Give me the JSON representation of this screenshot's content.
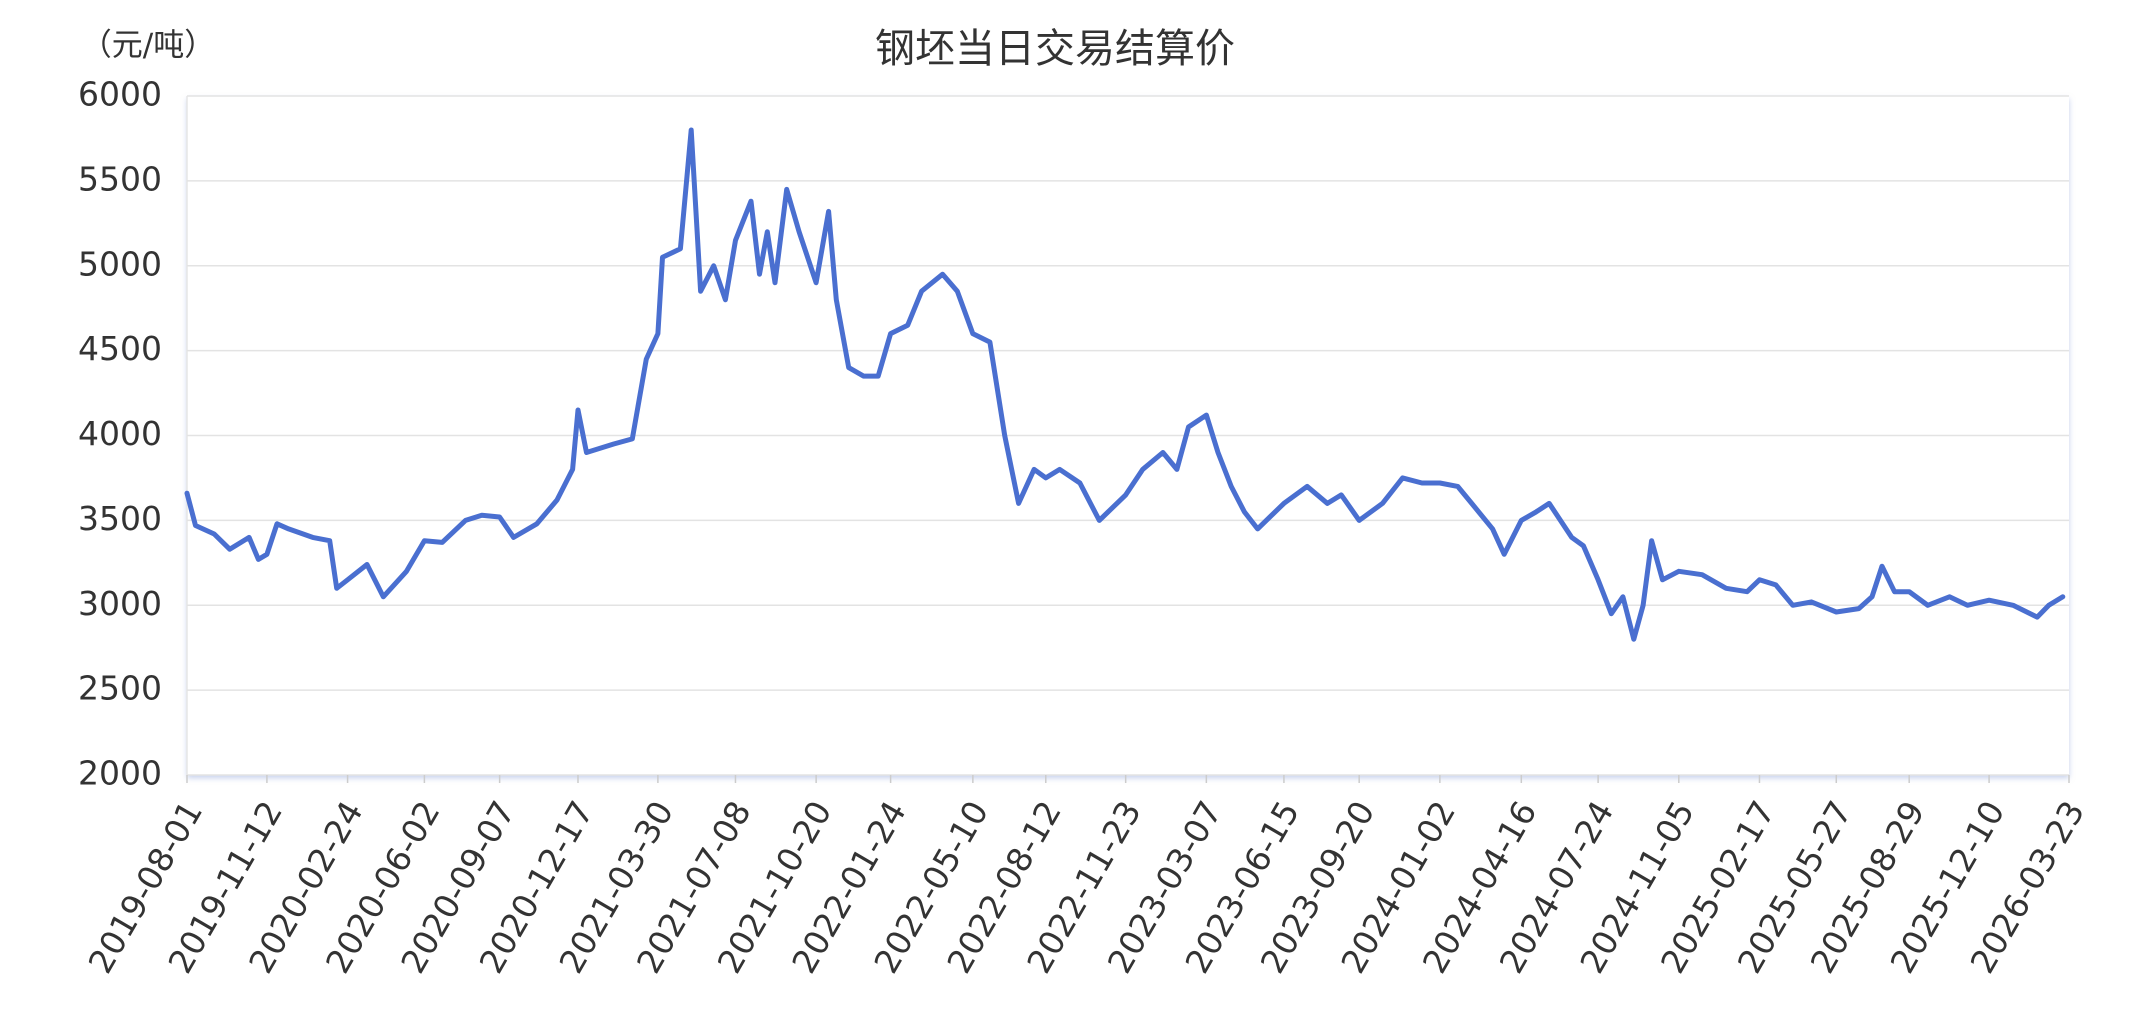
{
  "chart_data": {
    "type": "line",
    "title": "钢坯当日交易结算价",
    "y_unit": "（元/吨）",
    "color": "#4a6fd0",
    "x": [
      "2019-08-01",
      "2019-08-12",
      "2019-09-05",
      "2019-09-25",
      "2019-10-20",
      "2019-11-01",
      "2019-11-12",
      "2019-11-25",
      "2019-12-10",
      "2020-01-10",
      "2020-02-01",
      "2020-02-10",
      "2020-02-24",
      "2020-03-20",
      "2020-04-10",
      "2020-05-10",
      "2020-06-02",
      "2020-06-25",
      "2020-07-25",
      "2020-08-15",
      "2020-09-07",
      "2020-09-25",
      "2020-10-25",
      "2020-11-20",
      "2020-12-10",
      "2020-12-17",
      "2020-12-28",
      "2021-02-01",
      "2021-02-25",
      "2021-03-15",
      "2021-03-30",
      "2021-04-05",
      "2021-04-28",
      "2021-05-12",
      "2021-05-24",
      "2021-06-10",
      "2021-06-25",
      "2021-07-08",
      "2021-07-28",
      "2021-08-08",
      "2021-08-18",
      "2021-08-28",
      "2021-09-12",
      "2021-09-28",
      "2021-10-20",
      "2021-11-05",
      "2021-11-15",
      "2021-12-01",
      "2021-12-20",
      "2022-01-08",
      "2022-01-24",
      "2022-02-15",
      "2022-03-05",
      "2022-04-01",
      "2022-04-20",
      "2022-05-10",
      "2022-06-01",
      "2022-06-20",
      "2022-07-08",
      "2022-07-28",
      "2022-08-12",
      "2022-08-30",
      "2022-09-25",
      "2022-10-20",
      "2022-11-23",
      "2022-12-15",
      "2023-01-10",
      "2023-01-28",
      "2023-02-12",
      "2023-03-07",
      "2023-03-22",
      "2023-04-08",
      "2023-04-25",
      "2023-05-12",
      "2023-06-15",
      "2023-07-15",
      "2023-08-10",
      "2023-08-28",
      "2023-09-20",
      "2023-10-20",
      "2023-11-15",
      "2023-12-10",
      "2024-01-02",
      "2024-01-25",
      "2024-02-12",
      "2024-03-10",
      "2024-03-25",
      "2024-04-16",
      "2024-05-05",
      "2024-05-22",
      "2024-06-20",
      "2024-07-05",
      "2024-07-24",
      "2024-08-10",
      "2024-08-25",
      "2024-09-08",
      "2024-09-20",
      "2024-10-01",
      "2024-10-15",
      "2024-11-05",
      "2024-12-05",
      "2025-01-05",
      "2025-02-01",
      "2025-02-17",
      "2025-03-10",
      "2025-04-01",
      "2025-04-25",
      "2025-05-27",
      "2025-06-25",
      "2025-07-12",
      "2025-07-25",
      "2025-08-10",
      "2025-08-29",
      "2025-09-22",
      "2025-10-20",
      "2025-11-12",
      "2025-12-10",
      "2026-01-10",
      "2026-02-10",
      "2026-02-25",
      "2026-03-15"
    ],
    "values": [
      3660,
      3470,
      3420,
      3330,
      3400,
      3270,
      3300,
      3480,
      3450,
      3400,
      3380,
      3100,
      3150,
      3240,
      3050,
      3200,
      3380,
      3370,
      3500,
      3530,
      3520,
      3400,
      3480,
      3620,
      3800,
      4150,
      3900,
      3950,
      3980,
      4450,
      4600,
      5050,
      5100,
      5800,
      4850,
      5000,
      4800,
      5150,
      5380,
      4950,
      5200,
      4900,
      5450,
      5200,
      4900,
      5320,
      4800,
      4400,
      4350,
      4350,
      4600,
      4650,
      4850,
      4950,
      4850,
      4600,
      4550,
      4000,
      3600,
      3800,
      3750,
      3800,
      3720,
      3500,
      3650,
      3800,
      3900,
      3800,
      4050,
      4120,
      3900,
      3700,
      3550,
      3450,
      3600,
      3700,
      3600,
      3650,
      3500,
      3600,
      3750,
      3720,
      3720,
      3700,
      3600,
      3450,
      3300,
      3500,
      3550,
      3600,
      3400,
      3350,
      3150,
      2950,
      3050,
      2800,
      3000,
      3380,
      3150,
      3200,
      3180,
      3100,
      3080,
      3150,
      3120,
      3000,
      3020,
      2960,
      2980,
      3050,
      3230,
      3080,
      3080,
      3000,
      3050,
      3000,
      3030,
      3000,
      2930,
      3000,
      3050
    ],
    "xlim": [
      "2019-08-01",
      "2026-03-23"
    ],
    "xticks": [
      "2019-08-01",
      "2019-11-12",
      "2020-02-24",
      "2020-06-02",
      "2020-09-07",
      "2020-12-17",
      "2021-03-30",
      "2021-07-08",
      "2021-10-20",
      "2022-01-24",
      "2022-05-10",
      "2022-08-12",
      "2022-11-23",
      "2023-03-07",
      "2023-06-15",
      "2023-09-20",
      "2024-01-02",
      "2024-04-16",
      "2024-07-24",
      "2024-11-05",
      "2025-02-17",
      "2025-05-27",
      "2025-08-29",
      "2025-12-10",
      "2026-03-23"
    ],
    "ylim": [
      2000,
      6000
    ],
    "yticks": [
      2000,
      2500,
      3000,
      3500,
      4000,
      4500,
      5000,
      5500,
      6000
    ],
    "grid": true
  }
}
